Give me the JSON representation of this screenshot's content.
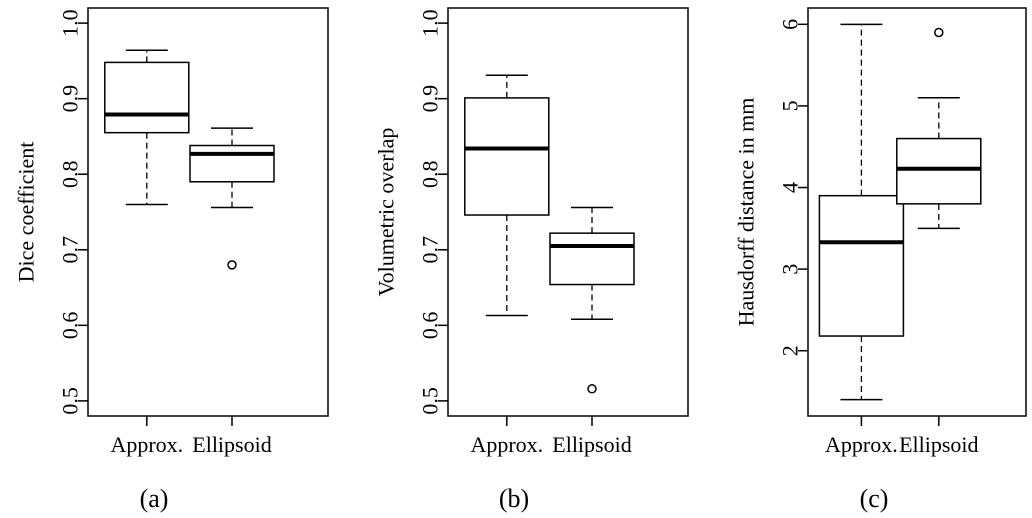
{
  "chart_data": [
    {
      "type": "box",
      "panel_label": "(a)",
      "title": "",
      "xlabel": "",
      "ylabel": "Dice coefficient",
      "categories": [
        "Approx.",
        "Ellipsoid"
      ],
      "ylim": [
        0.48,
        1.02
      ],
      "yticks": [
        "0.5",
        "0.6",
        "0.7",
        "0.8",
        "0.9",
        "1.0"
      ],
      "boxes": [
        {
          "name": "Approx.",
          "min": 0.76,
          "q1": 0.855,
          "median": 0.879,
          "q3": 0.948,
          "max": 0.964,
          "outliers": []
        },
        {
          "name": "Ellipsoid",
          "min": 0.756,
          "q1": 0.79,
          "median": 0.827,
          "q3": 0.838,
          "max": 0.861,
          "outliers": [
            0.68
          ]
        }
      ],
      "grid": false,
      "legend": "none"
    },
    {
      "type": "box",
      "panel_label": "(b)",
      "title": "",
      "xlabel": "",
      "ylabel": "Volumetric overlap",
      "categories": [
        "Approx.",
        "Ellipsoid"
      ],
      "ylim": [
        0.48,
        1.02
      ],
      "yticks": [
        "0.5",
        "0.6",
        "0.7",
        "0.8",
        "0.9",
        "1.0"
      ],
      "boxes": [
        {
          "name": "Approx.",
          "min": 0.613,
          "q1": 0.746,
          "median": 0.834,
          "q3": 0.901,
          "max": 0.931,
          "outliers": []
        },
        {
          "name": "Ellipsoid",
          "min": 0.608,
          "q1": 0.654,
          "median": 0.705,
          "q3": 0.722,
          "max": 0.756,
          "outliers": [
            0.516
          ]
        }
      ],
      "grid": false,
      "legend": "none"
    },
    {
      "type": "box",
      "panel_label": "(c)",
      "title": "",
      "xlabel": "",
      "ylabel": "Hausdorff distance in mm",
      "categories": [
        "Approx.",
        "Ellipsoid"
      ],
      "ylim": [
        1.2,
        6.2
      ],
      "yticks": [
        "2",
        "3",
        "4",
        "5",
        "6"
      ],
      "boxes": [
        {
          "name": "Approx.",
          "min": 1.4,
          "q1": 2.18,
          "median": 3.33,
          "q3": 3.9,
          "max": 6.0,
          "outliers": []
        },
        {
          "name": "Ellipsoid",
          "min": 3.5,
          "q1": 3.8,
          "median": 4.23,
          "q3": 4.6,
          "max": 5.1,
          "outliers": [
            5.9
          ]
        }
      ],
      "grid": false,
      "legend": "none"
    }
  ]
}
